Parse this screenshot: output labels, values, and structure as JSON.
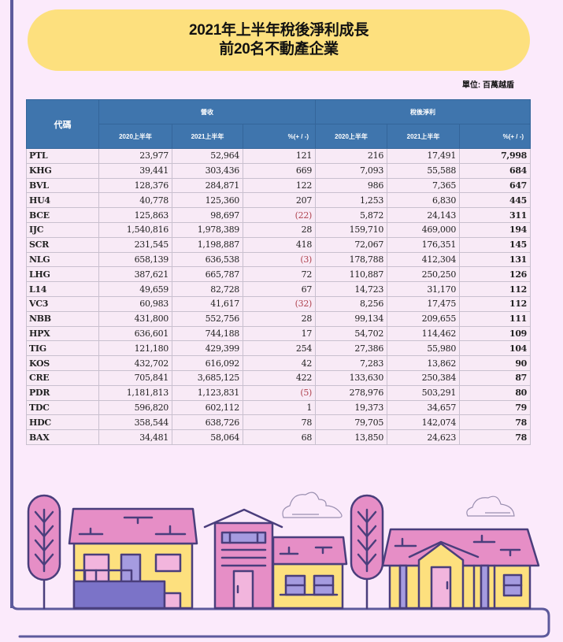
{
  "title": {
    "line1": "2021年上半年稅後淨利成長",
    "line2": "前20名不動產企業"
  },
  "unit_label": "單位: 百萬越盾",
  "table": {
    "code_header": "代碼",
    "groups": [
      {
        "label": "營收",
        "sub": [
          "2020上半年",
          "2021上半年",
          "%(+ / -)"
        ]
      },
      {
        "label": "稅後淨利",
        "sub": [
          "2020上半年",
          "2021上半年",
          "%(+ / -)"
        ]
      }
    ],
    "rows": [
      {
        "code": "PTL",
        "rev2020": "23,977",
        "rev2021": "52,964",
        "rev_pct": "121",
        "np2020": "216",
        "np2021": "17,491",
        "np_pct": "7,998"
      },
      {
        "code": "KHG",
        "rev2020": "39,441",
        "rev2021": "303,436",
        "rev_pct": "669",
        "np2020": "7,093",
        "np2021": "55,588",
        "np_pct": "684"
      },
      {
        "code": "BVL",
        "rev2020": "128,376",
        "rev2021": "284,871",
        "rev_pct": "122",
        "np2020": "986",
        "np2021": "7,365",
        "np_pct": "647"
      },
      {
        "code": "HU4",
        "rev2020": "40,778",
        "rev2021": "125,360",
        "rev_pct": "207",
        "np2020": "1,253",
        "np2021": "6,830",
        "np_pct": "445"
      },
      {
        "code": "BCE",
        "rev2020": "125,863",
        "rev2021": "98,697",
        "rev_pct": "(22)",
        "np2020": "5,872",
        "np2021": "24,143",
        "np_pct": "311"
      },
      {
        "code": "IJC",
        "rev2020": "1,540,816",
        "rev2021": "1,978,389",
        "rev_pct": "28",
        "np2020": "159,710",
        "np2021": "469,000",
        "np_pct": "194"
      },
      {
        "code": "SCR",
        "rev2020": "231,545",
        "rev2021": "1,198,887",
        "rev_pct": "418",
        "np2020": "72,067",
        "np2021": "176,351",
        "np_pct": "145"
      },
      {
        "code": "NLG",
        "rev2020": "658,139",
        "rev2021": "636,538",
        "rev_pct": "(3)",
        "np2020": "178,788",
        "np2021": "412,304",
        "np_pct": "131"
      },
      {
        "code": "LHG",
        "rev2020": "387,621",
        "rev2021": "665,787",
        "rev_pct": "72",
        "np2020": "110,887",
        "np2021": "250,250",
        "np_pct": "126"
      },
      {
        "code": "L14",
        "rev2020": "49,659",
        "rev2021": "82,728",
        "rev_pct": "67",
        "np2020": "14,723",
        "np2021": "31,170",
        "np_pct": "112"
      },
      {
        "code": "VC3",
        "rev2020": "60,983",
        "rev2021": "41,617",
        "rev_pct": "(32)",
        "np2020": "8,256",
        "np2021": "17,475",
        "np_pct": "112"
      },
      {
        "code": "NBB",
        "rev2020": "431,800",
        "rev2021": "552,756",
        "rev_pct": "28",
        "np2020": "99,134",
        "np2021": "209,655",
        "np_pct": "111"
      },
      {
        "code": "HPX",
        "rev2020": "636,601",
        "rev2021": "744,188",
        "rev_pct": "17",
        "np2020": "54,702",
        "np2021": "114,462",
        "np_pct": "109"
      },
      {
        "code": "TIG",
        "rev2020": "121,180",
        "rev2021": "429,399",
        "rev_pct": "254",
        "np2020": "27,386",
        "np2021": "55,980",
        "np_pct": "104"
      },
      {
        "code": "KOS",
        "rev2020": "432,702",
        "rev2021": "616,092",
        "rev_pct": "42",
        "np2020": "7,283",
        "np2021": "13,862",
        "np_pct": "90"
      },
      {
        "code": "CRE",
        "rev2020": "705,841",
        "rev2021": "3,685,125",
        "rev_pct": "422",
        "np2020": "133,630",
        "np2021": "250,384",
        "np_pct": "87"
      },
      {
        "code": "PDR",
        "rev2020": "1,181,813",
        "rev2021": "1,123,831",
        "rev_pct": "(5)",
        "np2020": "278,976",
        "np2021": "503,291",
        "np_pct": "80"
      },
      {
        "code": "TDC",
        "rev2020": "596,820",
        "rev2021": "602,112",
        "rev_pct": "1",
        "np2020": "19,373",
        "np2021": "34,657",
        "np_pct": "79"
      },
      {
        "code": "HDC",
        "rev2020": "358,544",
        "rev2021": "638,726",
        "rev_pct": "78",
        "np2020": "79,705",
        "np2021": "142,074",
        "np_pct": "78"
      },
      {
        "code": "BAX",
        "rev2020": "34,481",
        "rev2021": "58,064",
        "rev_pct": "68",
        "np2020": "13,850",
        "np2021": "24,623",
        "np_pct": "78"
      }
    ]
  },
  "colors": {
    "background": "#fbeafb",
    "title_pill": "#fde07e",
    "header_blue": "#3f75ad",
    "negative_red": "#b0424e",
    "frame_purple": "#5d5a9c",
    "house_pink": "#e68ec6",
    "house_yellow": "#fde07e",
    "house_violet": "#7b73c8"
  },
  "chart_data": {
    "type": "table",
    "title": "2021年上半年稅後淨利成長 前20名不動產企業",
    "unit": "單位: 百萬越盾",
    "columns": [
      "代碼",
      "營收 2020上半年",
      "營收 2021上半年",
      "營收 %(+ / -)",
      "稅後淨利 2020上半年",
      "稅後淨利 2021上半年",
      "稅後淨利 %(+ / -)"
    ],
    "categories": [
      "PTL",
      "KHG",
      "BVL",
      "HU4",
      "BCE",
      "IJC",
      "SCR",
      "NLG",
      "LHG",
      "L14",
      "VC3",
      "NBB",
      "HPX",
      "TIG",
      "KOS",
      "CRE",
      "PDR",
      "TDC",
      "HDC",
      "BAX"
    ],
    "series": [
      {
        "name": "營收 2020上半年",
        "values": [
          23977,
          39441,
          128376,
          40778,
          125863,
          1540816,
          231545,
          658139,
          387621,
          49659,
          60983,
          431800,
          636601,
          121180,
          432702,
          705841,
          1181813,
          596820,
          358544,
          34481
        ]
      },
      {
        "name": "營收 2021上半年",
        "values": [
          52964,
          303436,
          284871,
          125360,
          98697,
          1978389,
          1198887,
          636538,
          665787,
          82728,
          41617,
          552756,
          744188,
          429399,
          616092,
          3685125,
          1123831,
          602112,
          638726,
          58064
        ]
      },
      {
        "name": "營收 %(+ / -)",
        "values": [
          121,
          669,
          122,
          207,
          -22,
          28,
          418,
          -3,
          72,
          67,
          -32,
          28,
          17,
          254,
          42,
          422,
          -5,
          1,
          78,
          68
        ]
      },
      {
        "name": "稅後淨利 2020上半年",
        "values": [
          216,
          7093,
          986,
          1253,
          5872,
          159710,
          72067,
          178788,
          110887,
          14723,
          8256,
          99134,
          54702,
          27386,
          7283,
          133630,
          278976,
          19373,
          79705,
          13850
        ]
      },
      {
        "name": "稅後淨利 2021上半年",
        "values": [
          17491,
          55588,
          7365,
          6830,
          24143,
          469000,
          176351,
          412304,
          250250,
          31170,
          17475,
          209655,
          114462,
          55980,
          13862,
          250384,
          503291,
          34657,
          142074,
          24623
        ]
      },
      {
        "name": "稅後淨利 %(+ / -)",
        "values": [
          7998,
          684,
          647,
          445,
          311,
          194,
          145,
          131,
          126,
          112,
          112,
          111,
          109,
          104,
          90,
          87,
          80,
          79,
          78,
          78
        ]
      }
    ]
  }
}
